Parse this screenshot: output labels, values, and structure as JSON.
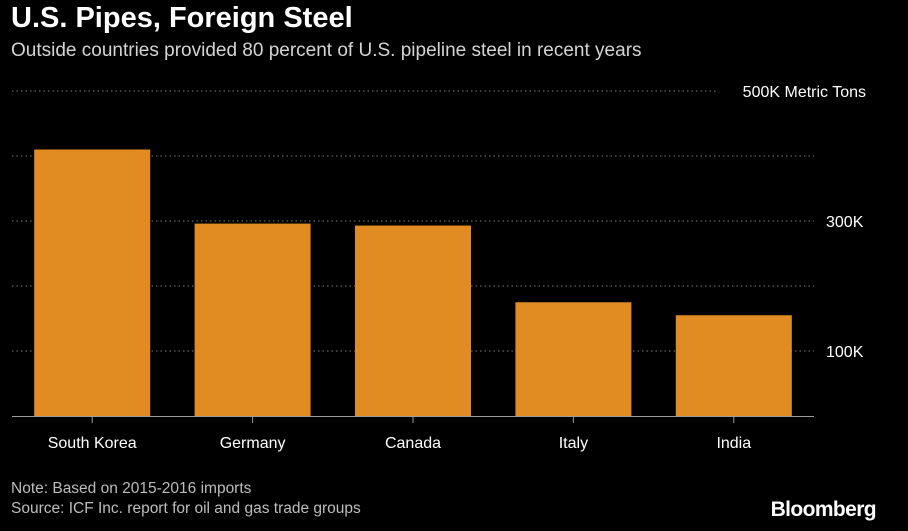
{
  "title": "U.S. Pipes, Foreign Steel",
  "subtitle": "Outside countries provided 80 percent of U.S. pipeline steel in recent years",
  "note": "Note: Based on 2015-2016 imports",
  "source": "Source: ICF Inc. report for oil and gas trade groups",
  "brand": "Bloomberg",
  "colors": {
    "background": "#000000",
    "bar": "#e08c22",
    "grid": "#7a7a7a",
    "axis": "#9e9e9e",
    "text": "#ffffff",
    "muted": "#d0d0d0"
  },
  "chart_data": {
    "type": "bar",
    "title": "U.S. Pipes, Foreign Steel",
    "subtitle": "Outside countries provided 80 percent of U.S. pipeline steel in recent years",
    "xlabel": "",
    "ylabel": "",
    "unit": "Metric Tons",
    "categories": [
      "South Korea",
      "Germany",
      "Canada",
      "Italy",
      "India"
    ],
    "values": [
      410000,
      296000,
      293000,
      175000,
      155000
    ],
    "ylim": [
      0,
      500000
    ],
    "y_gridlines": [
      100000,
      200000,
      300000,
      400000,
      500000
    ],
    "y_tick_labels": [
      {
        "value": 100000,
        "label": "100K"
      },
      {
        "value": 300000,
        "label": "300K"
      },
      {
        "value": 500000,
        "label": "500K Metric Tons"
      }
    ],
    "grid": true,
    "legend": "none",
    "axis_side": "right"
  }
}
